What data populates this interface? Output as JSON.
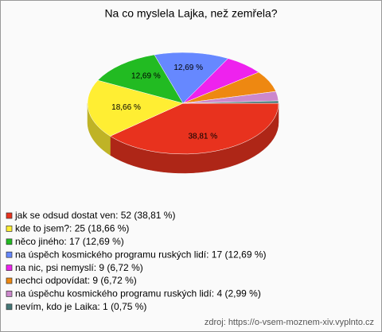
{
  "chart_data": {
    "type": "pie",
    "title": "Na co myslela Lajka, než zemřela?",
    "categories": [
      "jak se odsud dostat ven: 52 (38,81 %)",
      "kde to jsem?: 25 (18,66 %)",
      "něco jiného: 17 (12,69 %)",
      "na úspěch kosmického programu ruských lidí: 17 (12,69 %)",
      "na nic, psi nemyslí: 9 (6,72 %)",
      "nechci odpovídat: 9 (6,72 %)",
      "na úspěchu kosmického programu ruských lidí: 4 (2,99 %)",
      "nevím, kdo je Laika: 1 (0,75 %)"
    ],
    "values": [
      38.81,
      18.66,
      12.69,
      12.69,
      6.72,
      6.72,
      2.99,
      0.75
    ],
    "value_labels": [
      "38,81 %",
      "18,66 %",
      "12,69 %",
      "12,69 %",
      null,
      null,
      null,
      null
    ],
    "colors": [
      "#e8321e",
      "#ffee33",
      "#22bb22",
      "#6688ff",
      "#ee22ee",
      "#ee8811",
      "#cc88cc",
      "#447777"
    ],
    "source": "zdroj: https://o-vsem-moznem-xiv.vyplnto.cz"
  }
}
